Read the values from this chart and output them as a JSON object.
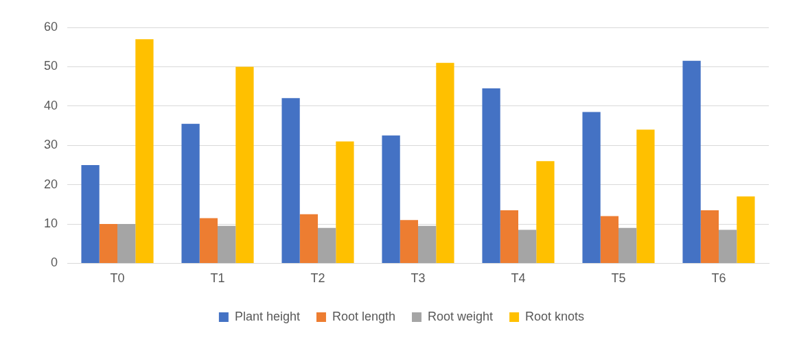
{
  "chart_data": {
    "type": "bar",
    "categories": [
      "T0",
      "T1",
      "T2",
      "T3",
      "T4",
      "T5",
      "T6"
    ],
    "series": [
      {
        "name": "Plant height",
        "color": "#4472c4",
        "values": [
          25,
          35.5,
          42,
          32.5,
          44.5,
          38.5,
          51.5
        ]
      },
      {
        "name": "Root length",
        "color": "#ed7d31",
        "values": [
          10,
          11.5,
          12.5,
          11,
          13.5,
          12,
          13.5
        ]
      },
      {
        "name": "Root weight",
        "color": "#a5a5a5",
        "values": [
          10,
          9.5,
          9,
          9.5,
          8.5,
          9,
          8.5
        ]
      },
      {
        "name": "Root knots",
        "color": "#ffc000",
        "values": [
          57,
          50,
          31,
          51,
          26,
          34,
          17
        ]
      }
    ],
    "ylim": [
      0,
      60
    ],
    "yticks": [
      0,
      10,
      20,
      30,
      40,
      50,
      60
    ],
    "grid": "y",
    "legend": "bottom"
  }
}
